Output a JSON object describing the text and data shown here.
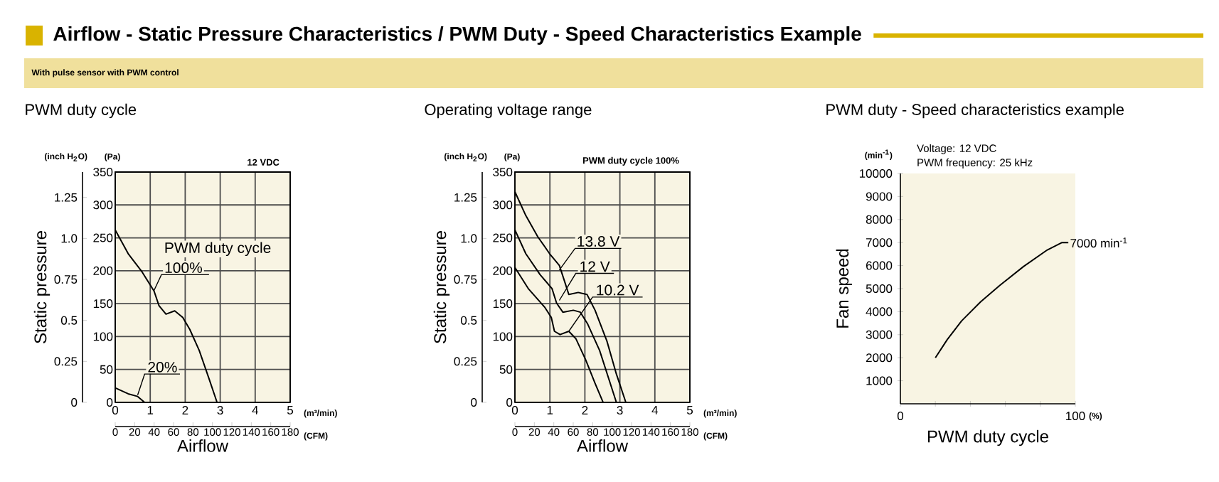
{
  "chart_data": [
    {
      "type": "line",
      "title": "PWM duty cycle",
      "xlabel": "Airflow",
      "ylabel": "Static pressure",
      "y2label": "(Pa)",
      "x2label": "(CFM)",
      "legend_title": "PWM duty cycle",
      "annotations": [
        "Airflow - Static Pressure Characteristics / PWM Duty - Speed Characteristics Example",
        "With pulse sensor with PWM control",
        "(inch H$_{2}$O)",
        "12 VDC",
        "(m³/min)"
      ],
      "series": [
        {
          "name": "100%",
          "color": "#000000",
          "axis": "y2",
          "x": [
            0,
            0.37,
            0.77,
            1.11,
            1.25,
            1.45,
            1.7,
            1.93,
            2.13,
            2.4,
            2.68,
            2.91
          ],
          "values": [
            262,
            226,
            198,
            169,
            147,
            134,
            139,
            129,
            111,
            79,
            36,
            0
          ]
        },
        {
          "name": "20%",
          "color": "#000000",
          "axis": "y2",
          "x": [
            0,
            0.37,
            0.64,
            0.84
          ],
          "values": [
            22,
            13,
            9,
            0
          ]
        }
      ],
      "xlim": [
        0,
        5
      ],
      "xticks": [
        0,
        1,
        2,
        3,
        4,
        5
      ],
      "y2lim": [
        0,
        350
      ],
      "y2ticks": [
        0,
        50,
        100,
        150,
        200,
        250,
        300,
        350
      ],
      "ylim": [
        0,
        1.405
      ],
      "yticks": [
        0,
        0.25,
        0.5,
        0.75,
        {
          "value": 1,
          "label": "1.0"
        },
        1.25
      ],
      "x2lim": [
        0,
        180
      ],
      "x2ticks": [
        0,
        20,
        40,
        60,
        80,
        100,
        120,
        140,
        160,
        180
      ],
      "grid": true,
      "legend": false
    },
    {
      "type": "line",
      "title": "Operating voltage range",
      "xlabel": "Airflow",
      "ylabel": "Static pressure",
      "y2label": "(Pa)",
      "x2label": "(CFM)",
      "annotations": [
        "(inch H$_{2}$O)",
        "PWM duty cycle 100%",
        "(m³/min)"
      ],
      "series": [
        {
          "name": "13.8 V",
          "color": "#000000",
          "axis": "y2",
          "x": [
            0,
            0.31,
            0.65,
            0.99,
            1.27,
            1.4,
            1.54,
            1.81,
            2.06,
            2.29,
            2.63,
            2.9,
            3.17
          ],
          "values": [
            320,
            284,
            252,
            226,
            208,
            187,
            164,
            167,
            164,
            140,
            93,
            43,
            0
          ]
        },
        {
          "name": "12 V",
          "color": "#000000",
          "axis": "y2",
          "x": [
            0,
            0.31,
            0.72,
            1.06,
            1.19,
            1.37,
            1.67,
            1.87,
            2.08,
            2.42,
            2.9
          ],
          "values": [
            262,
            226,
            194,
            173,
            151,
            137,
            140,
            137,
            119,
            79,
            0
          ]
        },
        {
          "name": "10.2 V",
          "color": "#000000",
          "axis": "y2",
          "x": [
            0,
            0.38,
            0.86,
            1.04,
            1.13,
            1.29,
            1.54,
            1.74,
            2.02,
            2.29,
            2.52
          ],
          "values": [
            205,
            173,
            144,
            129,
            108,
            103,
            108,
            97,
            65,
            29,
            0
          ]
        }
      ],
      "xlim": [
        0,
        5
      ],
      "xticks": [
        0,
        1,
        2,
        3,
        4,
        5
      ],
      "y2lim": [
        0,
        350
      ],
      "y2ticks": [
        0,
        50,
        100,
        150,
        200,
        250,
        300,
        350
      ],
      "ylim": [
        0,
        1.405
      ],
      "yticks": [
        0,
        0.25,
        0.5,
        0.75,
        {
          "value": 1,
          "label": "1.0"
        },
        1.25
      ],
      "x2lim": [
        0,
        180
      ],
      "x2ticks": [
        0,
        20,
        40,
        60,
        80,
        100,
        120,
        140,
        160,
        180
      ],
      "grid": true,
      "legend": false
    },
    {
      "type": "line",
      "title": "PWM duty - Speed characteristics example",
      "xlabel": "PWM duty cycle",
      "ylabel": "Fan speed",
      "annotations": [
        "(min$^{-1}$)",
        "Voltage: 12 VDC",
        "PWM frequency: 25 kHz",
        "(%)",
        {
          "text": "7000 min$^{-1}$",
          "x": 96,
          "y": 7000
        }
      ],
      "series": [
        {
          "color": "#000000",
          "x": [
            20,
            26.8,
            35,
            45.9,
            56.8,
            70.4,
            84,
            92.4,
            96
          ],
          "values": [
            2000,
            2790,
            3600,
            4430,
            5140,
            5960,
            6680,
            7000,
            7000
          ]
        }
      ],
      "xlim": [
        0,
        100
      ],
      "xticks": [
        0,
        {
          "value": 20,
          "label": null
        },
        {
          "value": 40,
          "label": null
        },
        {
          "value": 60,
          "label": null
        },
        {
          "value": 80,
          "label": null
        },
        100
      ],
      "ylim": [
        0,
        10000
      ],
      "yticks": [
        1000,
        2000,
        3000,
        4000,
        5000,
        6000,
        7000,
        8000,
        9000,
        10000
      ],
      "grid": false
    }
  ]
}
